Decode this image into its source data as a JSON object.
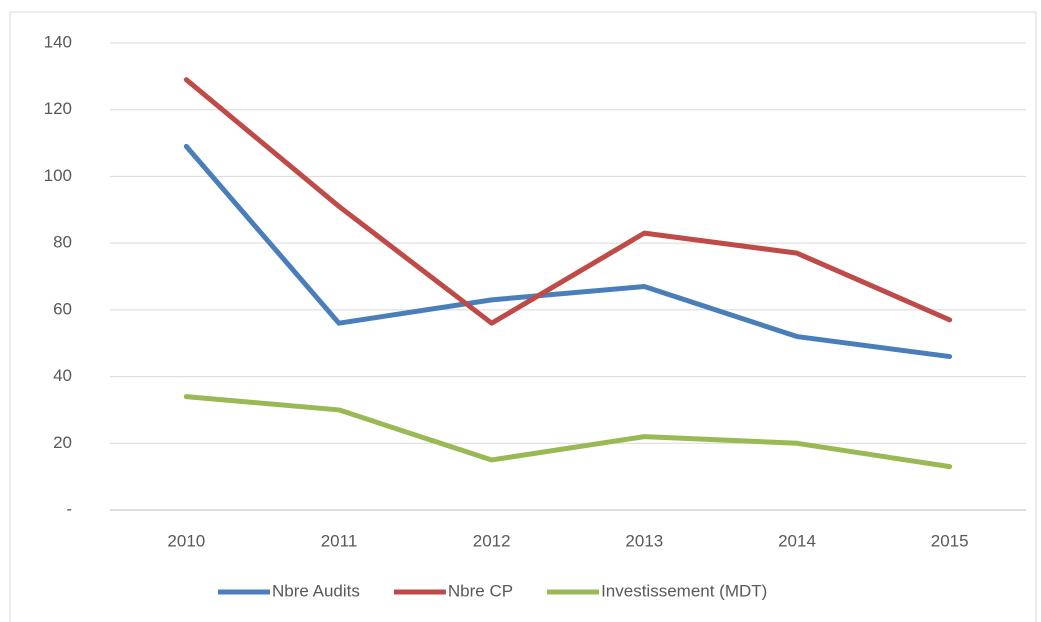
{
  "chart_data": {
    "type": "line",
    "categories": [
      "2010",
      "2011",
      "2012",
      "2013",
      "2014",
      "2015"
    ],
    "series": [
      {
        "name": "Nbre Audits",
        "color": "#4a7ebb",
        "values": [
          109,
          56,
          63,
          67,
          52,
          46
        ]
      },
      {
        "name": "Nbre CP",
        "color": "#be4b48",
        "values": [
          129,
          91,
          56,
          83,
          77,
          57
        ]
      },
      {
        "name": "Investissement (MDT)",
        "color": "#98b954",
        "values": [
          34,
          30,
          15,
          22,
          20,
          13
        ]
      }
    ],
    "ylim": [
      0,
      140
    ],
    "yticks": [
      {
        "value": 0,
        "label": "-"
      },
      20,
      40,
      60,
      80,
      100,
      120,
      140
    ],
    "grid": true,
    "legend": "bottom"
  }
}
